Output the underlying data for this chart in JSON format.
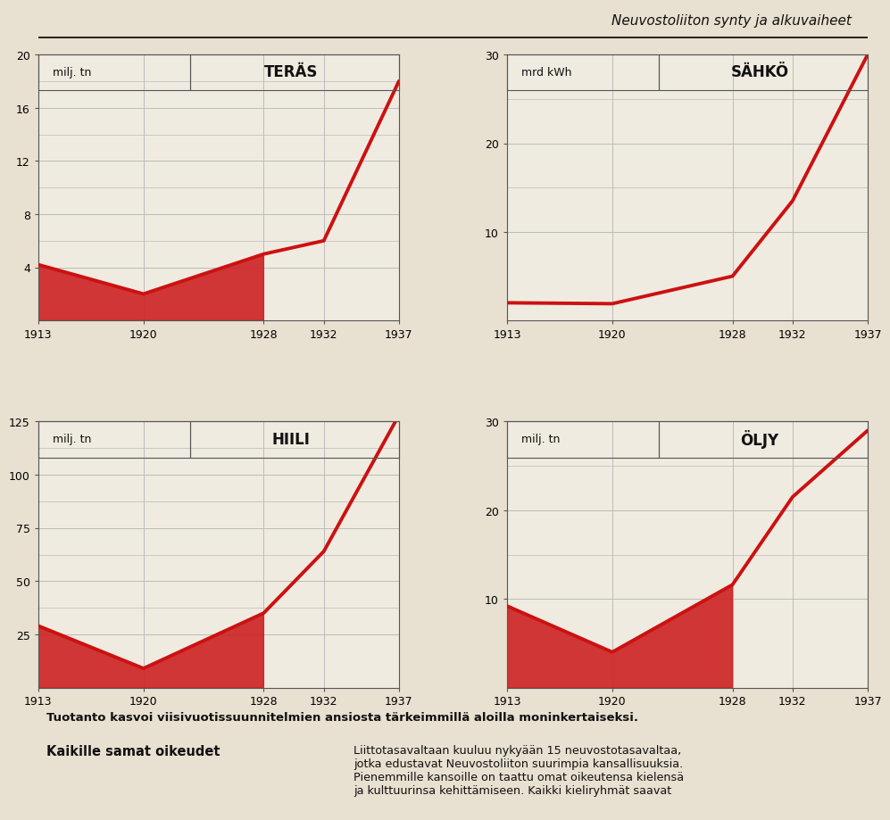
{
  "title_page": "Neuvostoliiton synty ja alkuvaiheet",
  "caption": "Tuotanto kasvoi viisivuotissuunnitelmien ansiosta tärkeimmillä aloilla moninkertaiseksi.",
  "subtitle2": "Kaikille samat oikeudet",
  "subtitle2_text": "Liittotasavaltaan kuuluu nykyään 15 neuvostotasavaltaa,\njotka edustavat Neuvostoliiton suurimpia kansallisuuksia.\nPienemmille kansoille on taattu omat oikeutensa kielensä\nja kulttuurinsa kehittämiseen. Kaikki kieliryhmät saavat",
  "charts": [
    {
      "title": "TERÄS",
      "unit": "milj. tn",
      "years": [
        1913,
        1920,
        1928,
        1932,
        1937
      ],
      "values": [
        4.2,
        2.0,
        5.0,
        6.0,
        18.0
      ],
      "ylim": [
        0,
        20
      ],
      "yticks": [
        4,
        8,
        12,
        16,
        20
      ],
      "fill_dip": true
    },
    {
      "title": "SÄHKÖ",
      "unit": "mrd kWh",
      "years": [
        1913,
        1920,
        1928,
        1932,
        1937
      ],
      "values": [
        2.0,
        1.9,
        5.0,
        13.5,
        30.0
      ],
      "ylim": [
        0,
        30
      ],
      "yticks": [
        10,
        20,
        30
      ],
      "fill_dip": false
    },
    {
      "title": "HIILI",
      "unit": "milj. tn",
      "years": [
        1913,
        1920,
        1928,
        1932,
        1937
      ],
      "values": [
        29.0,
        9.0,
        35.0,
        64.0,
        128.0
      ],
      "ylim": [
        0,
        125
      ],
      "yticks": [
        25,
        50,
        75,
        100,
        125
      ],
      "fill_dip": true
    },
    {
      "title": "ÖLJY",
      "unit": "milj. tn",
      "years": [
        1913,
        1920,
        1928,
        1932,
        1937
      ],
      "values": [
        9.2,
        4.0,
        11.6,
        21.5,
        29.0
      ],
      "ylim": [
        0,
        30
      ],
      "yticks": [
        10,
        20,
        30
      ],
      "fill_dip": true
    }
  ],
  "line_color": "#CC1111",
  "fill_color": "#CC2222",
  "bg_color": "#F0EBE0",
  "grid_color": "#BBBBBB",
  "axis_label_color": "#111111",
  "page_bg": "#E8E0D0"
}
